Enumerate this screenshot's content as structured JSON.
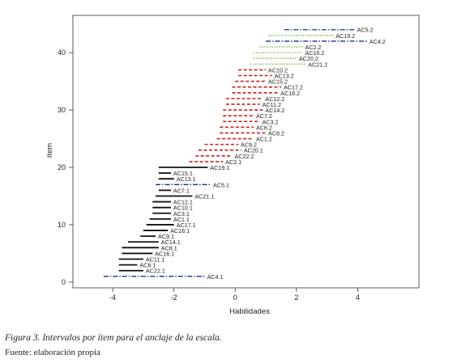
{
  "chart_data": {
    "type": "interval",
    "xlabel": "Habilidades",
    "ylabel": "ítem",
    "xlim": [
      -5.3,
      6.0
    ],
    "ylim": [
      -1.0,
      46.5
    ],
    "xticks": [
      -4,
      -2,
      0,
      2,
      4
    ],
    "yticks": [
      0,
      10,
      20,
      30,
      40
    ],
    "grid": false,
    "style_colors": {
      "black": "#111111",
      "red": "#cc1f1f",
      "blue": "#1a2b8f",
      "green": "#7ab648"
    },
    "intervals": [
      {
        "y": 1,
        "x0": -4.3,
        "x1": -1.0,
        "label": "AC4.1",
        "style": "blue"
      },
      {
        "y": 2,
        "x0": -3.8,
        "x1": -3.0,
        "label": "AC22.1",
        "style": "black"
      },
      {
        "y": 3,
        "x0": -3.8,
        "x1": -3.2,
        "label": "AC6.1",
        "style": "black"
      },
      {
        "y": 4,
        "x0": -3.8,
        "x1": -3.0,
        "label": "AC11.1",
        "style": "black"
      },
      {
        "y": 5,
        "x0": -3.7,
        "x1": -2.7,
        "label": "AC16.1",
        "style": "black"
      },
      {
        "y": 6,
        "x0": -3.7,
        "x1": -2.5,
        "label": "AC8.1",
        "style": "black"
      },
      {
        "y": 7,
        "x0": -3.5,
        "x1": -2.5,
        "label": "AC14.1",
        "style": "black"
      },
      {
        "y": 8,
        "x0": -3.1,
        "x1": -2.6,
        "label": "AC9.1",
        "style": "black"
      },
      {
        "y": 9,
        "x0": -3.0,
        "x1": -2.2,
        "label": "AC18.1",
        "style": "black"
      },
      {
        "y": 10,
        "x0": -2.9,
        "x1": -2.0,
        "label": "AC17.1",
        "style": "black"
      },
      {
        "y": 11,
        "x0": -2.8,
        "x1": -2.1,
        "label": "AC1.1",
        "style": "black"
      },
      {
        "y": 12,
        "x0": -2.7,
        "x1": -2.1,
        "label": "AC3.1",
        "style": "black"
      },
      {
        "y": 13,
        "x0": -2.7,
        "x1": -2.1,
        "label": "AC10.1",
        "style": "black"
      },
      {
        "y": 14,
        "x0": -2.7,
        "x1": -2.1,
        "label": "AC12.1",
        "style": "black"
      },
      {
        "y": 15,
        "x0": -2.6,
        "x1": -1.4,
        "label": "AC21.1",
        "style": "black"
      },
      {
        "y": 16,
        "x0": -2.5,
        "x1": -2.1,
        "label": "AC7.1",
        "style": "black"
      },
      {
        "y": 17,
        "x0": -2.6,
        "x1": -0.8,
        "label": "AC5.1",
        "style": "blue"
      },
      {
        "y": 18,
        "x0": -2.5,
        "x1": -2.0,
        "label": "AC13.1",
        "style": "black"
      },
      {
        "y": 19,
        "x0": -2.5,
        "x1": -2.1,
        "label": "AC15.1",
        "style": "black"
      },
      {
        "y": 20,
        "x0": -2.5,
        "x1": -0.9,
        "label": "AC19.1",
        "style": "black"
      },
      {
        "y": 21,
        "x0": -1.5,
        "x1": -0.4,
        "label": "AC2.1",
        "style": "red"
      },
      {
        "y": 22,
        "x0": -1.3,
        "x1": -0.1,
        "label": "AC22.2",
        "style": "red"
      },
      {
        "y": 23,
        "x0": -1.2,
        "x1": 0.2,
        "label": "AC20.1",
        "style": "red"
      },
      {
        "y": 24,
        "x0": -1.0,
        "x1": 0.1,
        "label": "AC9.2",
        "style": "red"
      },
      {
        "y": 25,
        "x0": -0.6,
        "x1": 0.6,
        "label": "AC1.2",
        "style": "red"
      },
      {
        "y": 26,
        "x0": -0.5,
        "x1": 1.0,
        "label": "AC8.2",
        "style": "red"
      },
      {
        "y": 27,
        "x0": -0.5,
        "x1": 0.6,
        "label": "AC6.2",
        "style": "red"
      },
      {
        "y": 28,
        "x0": -0.4,
        "x1": 0.8,
        "label": "AC3.2",
        "style": "red"
      },
      {
        "y": 29,
        "x0": -0.4,
        "x1": 0.6,
        "label": "AC7.2",
        "style": "red"
      },
      {
        "y": 30,
        "x0": -0.4,
        "x1": 0.9,
        "label": "AC14.2",
        "style": "red"
      },
      {
        "y": 31,
        "x0": -0.3,
        "x1": 0.8,
        "label": "AC11.2",
        "style": "red"
      },
      {
        "y": 32,
        "x0": -0.3,
        "x1": 0.9,
        "label": "AC12.2",
        "style": "red"
      },
      {
        "y": 33,
        "x0": -0.1,
        "x1": 1.4,
        "label": "AC18.2",
        "style": "red"
      },
      {
        "y": 34,
        "x0": -0.1,
        "x1": 1.5,
        "label": "AC17.2",
        "style": "red"
      },
      {
        "y": 35,
        "x0": 0.0,
        "x1": 1.0,
        "label": "AC15.2",
        "style": "red"
      },
      {
        "y": 36,
        "x0": 0.1,
        "x1": 1.2,
        "label": "AC13.2",
        "style": "red"
      },
      {
        "y": 37,
        "x0": 0.1,
        "x1": 1.0,
        "label": "AC10.2",
        "style": "red"
      },
      {
        "y": 38,
        "x0": 0.5,
        "x1": 2.3,
        "label": "AC21.2",
        "style": "green"
      },
      {
        "y": 39,
        "x0": 0.6,
        "x1": 2.0,
        "label": "AC20.2",
        "style": "green"
      },
      {
        "y": 40,
        "x0": 0.6,
        "x1": 2.2,
        "label": "AC16.2",
        "style": "green"
      },
      {
        "y": 41,
        "x0": 0.8,
        "x1": 2.2,
        "label": "AC2.2",
        "style": "green"
      },
      {
        "y": 42,
        "x0": 1.0,
        "x1": 4.3,
        "label": "AC4.2",
        "style": "blue"
      },
      {
        "y": 43,
        "x0": 1.1,
        "x1": 3.2,
        "label": "AC19.2",
        "style": "green"
      },
      {
        "y": 44,
        "x0": 1.6,
        "x1": 3.9,
        "label": "AC5.2",
        "style": "blue"
      }
    ]
  },
  "caption": "Figura 3. Intervalos por ítem para el anclaje de la escala.",
  "source": "Fuente: elaboración propia"
}
